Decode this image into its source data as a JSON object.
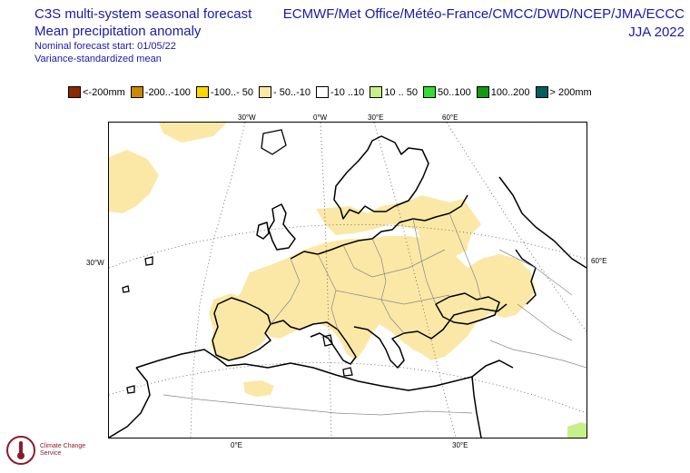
{
  "header": {
    "line1": "C3S multi-system seasonal forecast",
    "line2": "Mean precipitation anomaly",
    "line3": "Nominal forecast start: 01/05/22",
    "line4": "Variance-standardized mean",
    "systems": "ECMWF/Met Office/Météo-France/CMCC/DWD/NCEP/JMA/ECCC",
    "season": "JJA 2022"
  },
  "legend": [
    {
      "label": "<-200mm",
      "color": "#8b2a00"
    },
    {
      "label": "-200..-100",
      "color": "#cc8800"
    },
    {
      "label": "-100..- 50",
      "color": "#ffd700"
    },
    {
      "label": "- 50..-10",
      "color": "#fbe8a6"
    },
    {
      "label": "-10 ..10",
      "color": "#ffffff"
    },
    {
      "label": "10 .. 50",
      "color": "#c8f08a"
    },
    {
      "label": "50..100",
      "color": "#33dd33"
    },
    {
      "label": "100..200",
      "color": "#119911"
    },
    {
      "label": "> 200mm",
      "color": "#006060"
    }
  ],
  "grid_labels": {
    "top": [
      "30°W",
      "0°W",
      "30°E",
      "60°E"
    ],
    "left": "30°W",
    "right": "60°E",
    "bottom": [
      "0°E",
      "30°E"
    ]
  },
  "logo": {
    "name": "Climate Change Service"
  }
}
